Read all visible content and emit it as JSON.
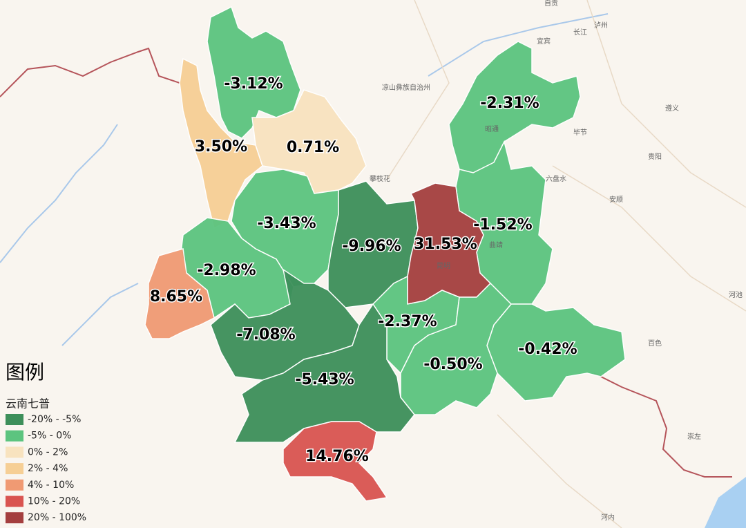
{
  "map": {
    "legend": {
      "title": "图例",
      "subtitle": "云南七普",
      "breaks": [
        -20,
        -5,
        0,
        2,
        4,
        10,
        20,
        100
      ],
      "classes": [
        {
          "label": "-20% - -5%",
          "color": "#3d8f5a"
        },
        {
          "label": "-5% - 0%",
          "color": "#5cc47f"
        },
        {
          "label": "0% - 2%",
          "color": "#f8e3bf"
        },
        {
          "label": "2% - 4%",
          "color": "#f6cf95"
        },
        {
          "label": "4% - 10%",
          "color": "#f09a73"
        },
        {
          "label": "10% - 20%",
          "color": "#d95450"
        },
        {
          "label": "20% - 100%",
          "color": "#a43f3f"
        }
      ]
    },
    "regions": {
      "values": [
        -3.12,
        3.5,
        0.71,
        -2.31,
        -3.43,
        -1.52,
        -9.96,
        31.53,
        -2.98,
        8.65,
        -7.08,
        -2.37,
        -0.42,
        -0.5,
        -5.43,
        14.76
      ],
      "value_labels": [
        "-3.12%",
        "3.50%",
        "0.71%",
        "-2.31%",
        "-3.43%",
        "-1.52%",
        "-9.96%",
        "31.53%",
        "-2.98%",
        "8.65%",
        "-7.08%",
        "-2.37%",
        "-0.42%",
        "-0.50%",
        "-5.43%",
        "14.76%"
      ]
    },
    "basemap_labels": [
      "自贡",
      "泸州",
      "宜宾",
      "长江",
      "凉山彝族自治州",
      "攀枝花",
      "毕节",
      "遵义",
      "贵阳",
      "六盘水",
      "安顺",
      "百色",
      "崇左",
      "河池",
      "河内",
      "昭通",
      "曲靖",
      "昆明"
    ]
  }
}
